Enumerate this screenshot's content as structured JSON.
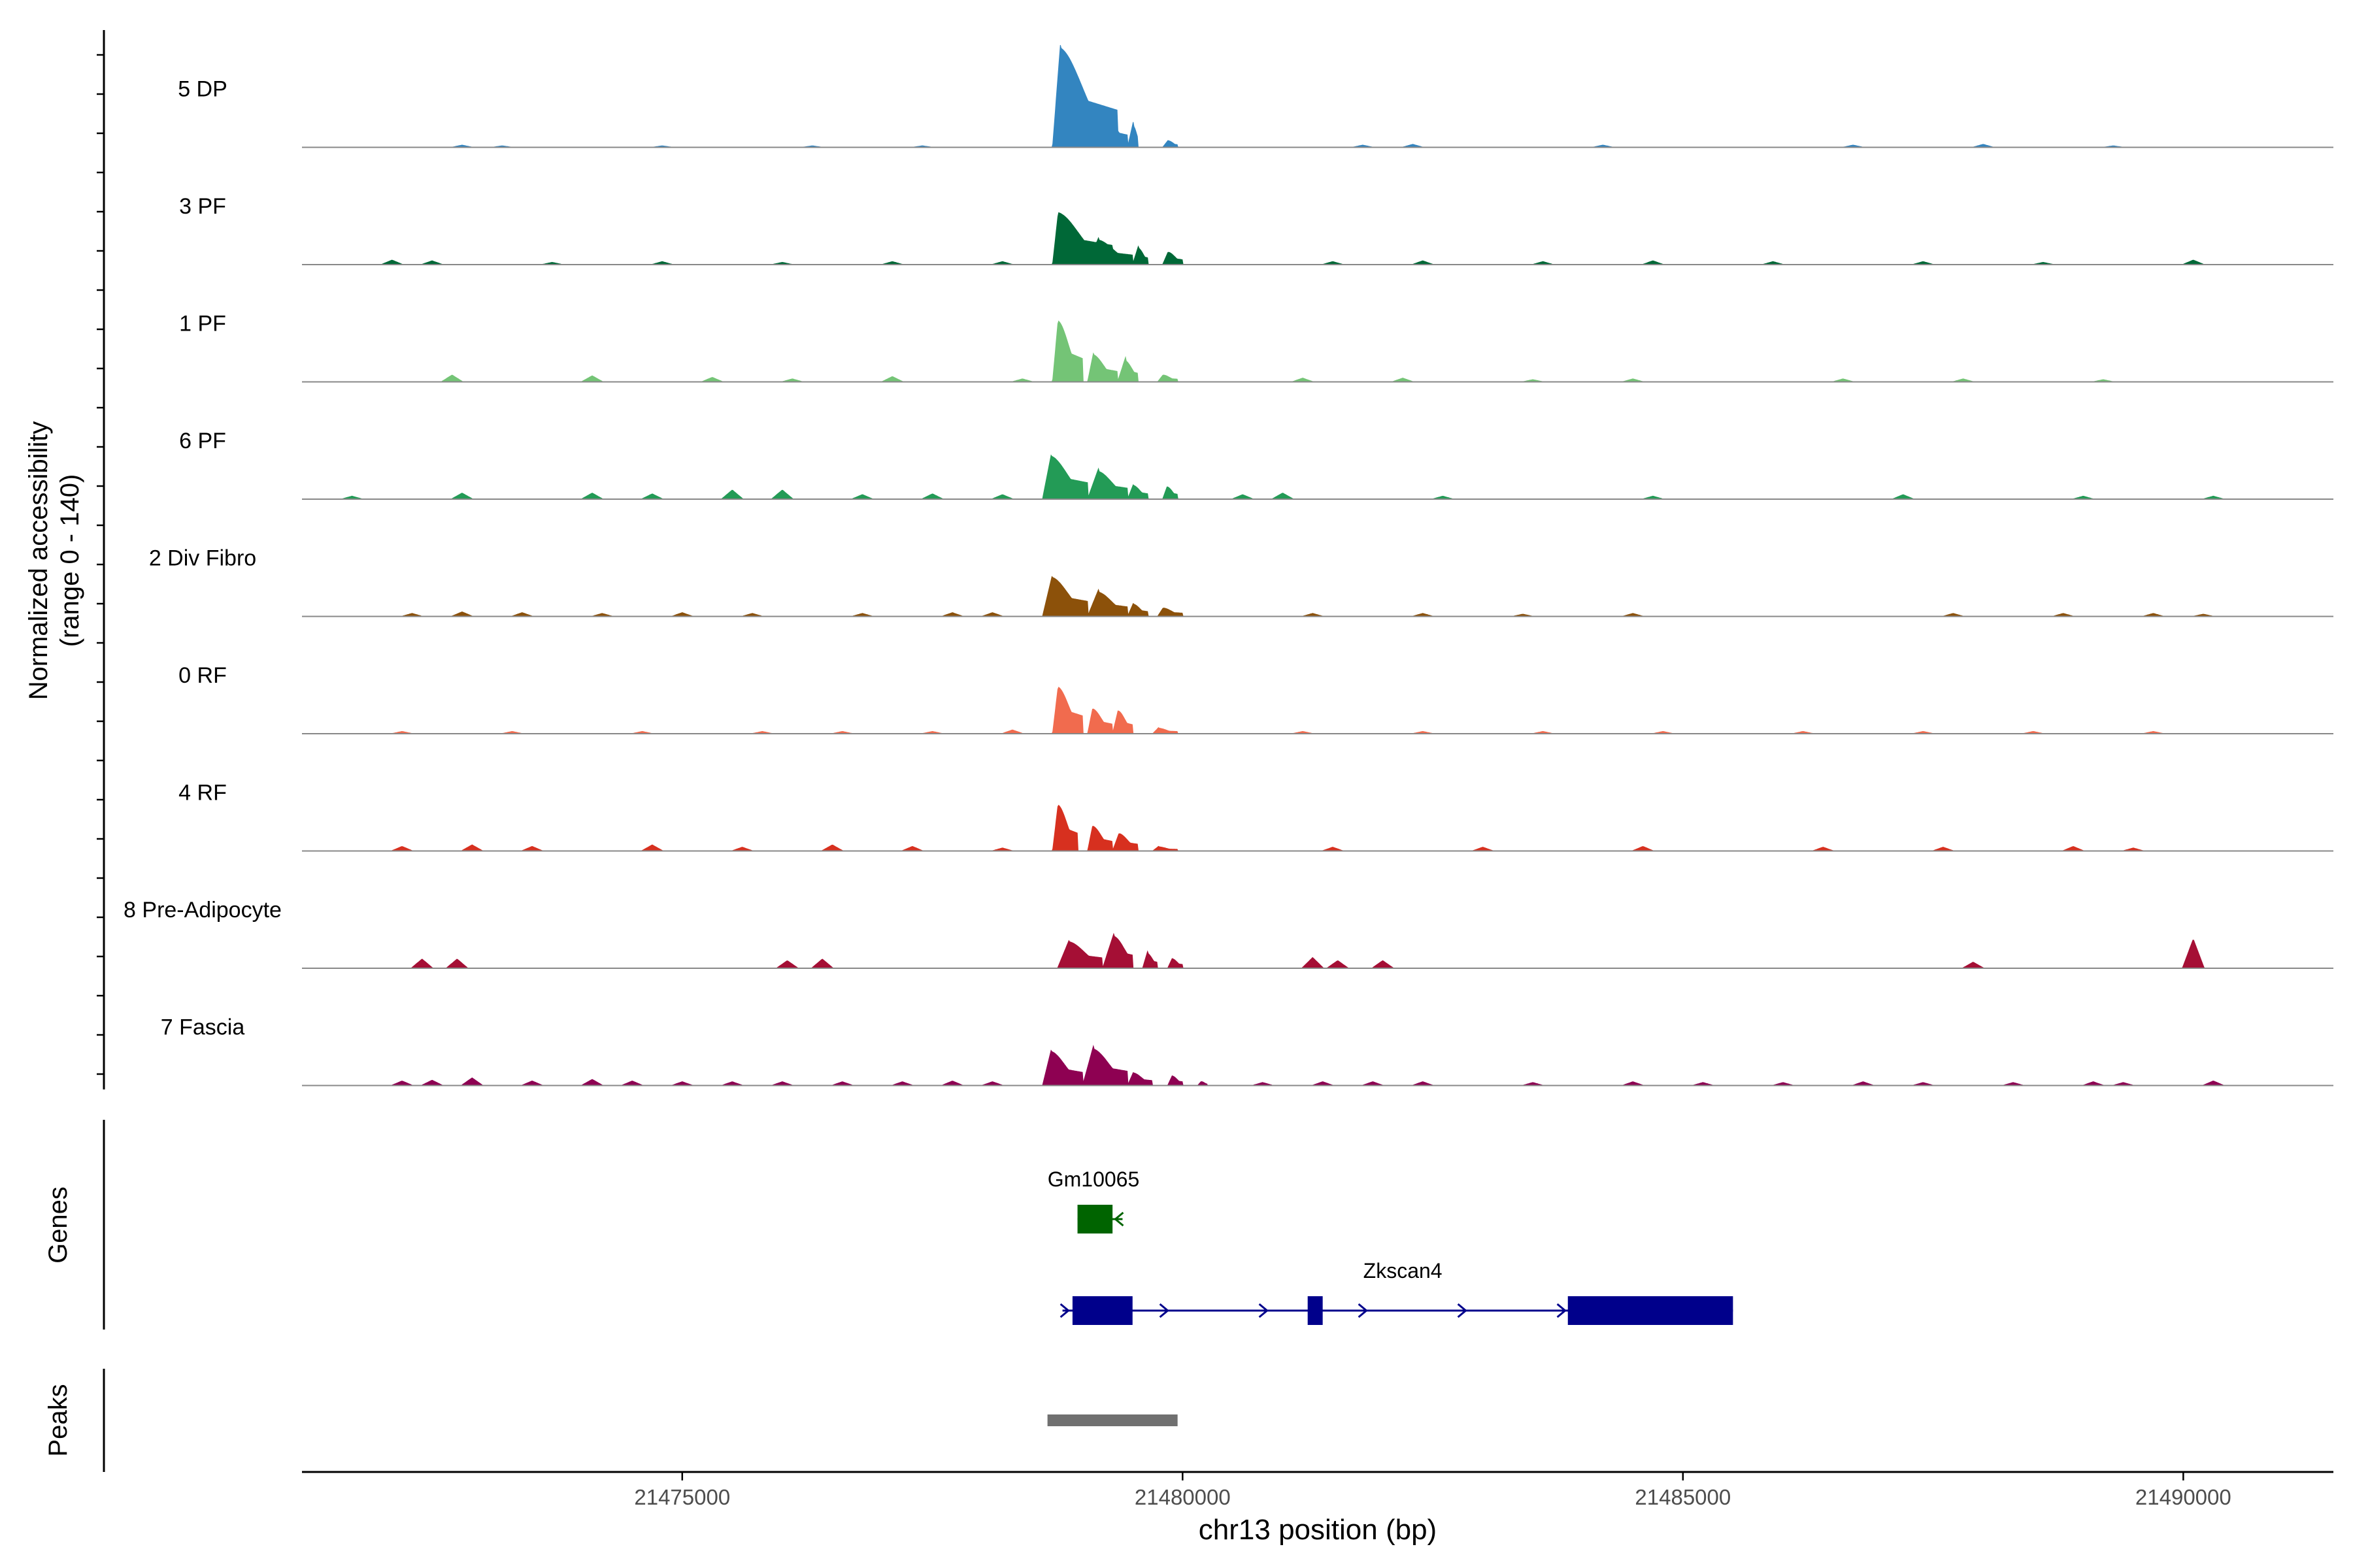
{
  "chart_data": {
    "type": "area",
    "title": "",
    "ylabel_line1": "Normalized accessibility",
    "ylabel_line2": "(range 0 - 140)",
    "xlabel": "chr13 position (bp)",
    "xlim": [
      21471200,
      21491500
    ],
    "ylim": [
      0,
      140
    ],
    "xticks": [
      21475000,
      21480000,
      21485000,
      21490000
    ],
    "xtick_labels": [
      "21475000",
      "21480000",
      "21485000",
      "21490000"
    ],
    "series": [
      {
        "name": "5 DP",
        "color": "#3385C0",
        "peaks": [
          [
            21478700,
            21479350,
            135,
            80
          ],
          [
            21479150,
            21479450,
            45,
            90
          ],
          [
            21479450,
            21479550,
            35,
            60
          ],
          [
            21479800,
            21479950,
            10,
            60
          ]
        ],
        "bumps": [
          [
            21472800,
            3
          ],
          [
            21473200,
            2
          ],
          [
            21474800,
            2
          ],
          [
            21476300,
            2
          ],
          [
            21477400,
            2
          ],
          [
            21481800,
            3
          ],
          [
            21482300,
            4
          ],
          [
            21484200,
            3
          ],
          [
            21486700,
            3
          ],
          [
            21488000,
            4
          ],
          [
            21489300,
            2
          ]
        ]
      },
      {
        "name": "3 PF",
        "color": "#006837",
        "peaks": [
          [
            21478700,
            21479300,
            70,
            60
          ],
          [
            21479050,
            21479500,
            35,
            110
          ],
          [
            21479500,
            21479650,
            25,
            60
          ],
          [
            21479800,
            21480000,
            18,
            60
          ]
        ],
        "bumps": [
          [
            21472100,
            6
          ],
          [
            21472500,
            5
          ],
          [
            21473700,
            3
          ],
          [
            21474800,
            4
          ],
          [
            21476000,
            3
          ],
          [
            21477100,
            4
          ],
          [
            21478200,
            4
          ],
          [
            21481500,
            4
          ],
          [
            21482400,
            5
          ],
          [
            21483600,
            4
          ],
          [
            21484700,
            5
          ],
          [
            21485900,
            4
          ],
          [
            21487400,
            4
          ],
          [
            21488600,
            3
          ],
          [
            21490100,
            6
          ]
        ]
      },
      {
        "name": "1 PF",
        "color": "#74C476",
        "peaks": [
          [
            21478700,
            21479000,
            85,
            60
          ],
          [
            21479050,
            21479350,
            38,
            60
          ],
          [
            21479350,
            21479550,
            32,
            80
          ],
          [
            21479750,
            21479950,
            10,
            60
          ]
        ],
        "bumps": [
          [
            21472700,
            9
          ],
          [
            21474100,
            8
          ],
          [
            21475300,
            6
          ],
          [
            21476100,
            4
          ],
          [
            21477100,
            7
          ],
          [
            21478400,
            4
          ],
          [
            21481200,
            5
          ],
          [
            21482200,
            5
          ],
          [
            21483500,
            3
          ],
          [
            21484500,
            4
          ],
          [
            21486600,
            4
          ],
          [
            21487800,
            4
          ],
          [
            21489200,
            3
          ]
        ]
      },
      {
        "name": "6 PF",
        "color": "#239B56",
        "peaks": [
          [
            21478600,
            21479050,
            60,
            90
          ],
          [
            21479050,
            21479450,
            40,
            110
          ],
          [
            21479450,
            21479650,
            20,
            60
          ],
          [
            21479800,
            21479950,
            18,
            50
          ]
        ],
        "bumps": [
          [
            21471700,
            4
          ],
          [
            21472800,
            8
          ],
          [
            21474100,
            8
          ],
          [
            21474700,
            7
          ],
          [
            21475500,
            12
          ],
          [
            21476000,
            12
          ],
          [
            21476800,
            6
          ],
          [
            21477500,
            7
          ],
          [
            21478200,
            6
          ],
          [
            21480600,
            6
          ],
          [
            21481000,
            8
          ],
          [
            21482600,
            4
          ],
          [
            21484700,
            4
          ],
          [
            21487200,
            6
          ],
          [
            21489000,
            4
          ],
          [
            21490300,
            4
          ]
        ]
      },
      {
        "name": "2 Div Fibro",
        "color": "#8C510A",
        "peaks": [
          [
            21478600,
            21479050,
            55,
            100
          ],
          [
            21479050,
            21479450,
            35,
            110
          ],
          [
            21479450,
            21479650,
            18,
            60
          ],
          [
            21479750,
            21480000,
            12,
            60
          ]
        ],
        "bumps": [
          [
            21472300,
            4
          ],
          [
            21472800,
            6
          ],
          [
            21473400,
            5
          ],
          [
            21474200,
            4
          ],
          [
            21475000,
            5
          ],
          [
            21475700,
            4
          ],
          [
            21476800,
            4
          ],
          [
            21477700,
            5
          ],
          [
            21478100,
            5
          ],
          [
            21481300,
            4
          ],
          [
            21482400,
            4
          ],
          [
            21483400,
            3
          ],
          [
            21484500,
            4
          ],
          [
            21487700,
            4
          ],
          [
            21488800,
            4
          ],
          [
            21489700,
            4
          ],
          [
            21490200,
            3
          ]
        ]
      },
      {
        "name": "0 RF",
        "color": "#F16B4E",
        "peaks": [
          [
            21478700,
            21479000,
            65,
            60
          ],
          [
            21479050,
            21479300,
            35,
            55
          ],
          [
            21479300,
            21479500,
            33,
            60
          ],
          [
            21479700,
            21479950,
            8,
            60
          ]
        ],
        "bumps": [
          [
            21472200,
            3
          ],
          [
            21473300,
            3
          ],
          [
            21474600,
            3
          ],
          [
            21475800,
            3
          ],
          [
            21476600,
            3
          ],
          [
            21477500,
            3
          ],
          [
            21478300,
            5
          ],
          [
            21481200,
            3
          ],
          [
            21482400,
            3
          ],
          [
            21483600,
            3
          ],
          [
            21484800,
            3
          ],
          [
            21486200,
            3
          ],
          [
            21487400,
            3
          ],
          [
            21488500,
            3
          ],
          [
            21489700,
            3
          ]
        ]
      },
      {
        "name": "4 RF",
        "color": "#D7301F",
        "peaks": [
          [
            21478700,
            21478950,
            65,
            60
          ],
          [
            21479050,
            21479300,
            35,
            55
          ],
          [
            21479300,
            21479550,
            25,
            70
          ],
          [
            21479700,
            21479950,
            6,
            60
          ]
        ],
        "bumps": [
          [
            21472200,
            6
          ],
          [
            21472900,
            8
          ],
          [
            21473500,
            6
          ],
          [
            21474700,
            8
          ],
          [
            21475600,
            5
          ],
          [
            21476500,
            8
          ],
          [
            21477300,
            6
          ],
          [
            21478200,
            4
          ],
          [
            21481500,
            5
          ],
          [
            21483000,
            5
          ],
          [
            21484600,
            6
          ],
          [
            21486400,
            5
          ],
          [
            21487600,
            5
          ],
          [
            21488900,
            6
          ],
          [
            21489500,
            4
          ]
        ]
      },
      {
        "name": "8 Pre-Adipocyte",
        "color": "#A50F35",
        "peaks": [
          [
            21478750,
            21479200,
            38,
            120
          ],
          [
            21479200,
            21479500,
            48,
            120
          ],
          [
            21479600,
            21479750,
            22,
            50
          ],
          [
            21479850,
            21480000,
            14,
            50
          ]
        ],
        "bumps": [
          [
            21472400,
            12
          ],
          [
            21472750,
            12
          ],
          [
            21476050,
            10
          ],
          [
            21476400,
            12
          ],
          [
            21481300,
            14
          ],
          [
            21481550,
            10
          ],
          [
            21482000,
            10
          ],
          [
            21487900,
            8
          ],
          [
            21490100,
            38
          ]
        ]
      },
      {
        "name": "7 Fascia",
        "color": "#8E0152",
        "peaks": [
          [
            21478600,
            21479000,
            48,
            90
          ],
          [
            21479000,
            21479450,
            52,
            110
          ],
          [
            21479450,
            21479700,
            18,
            60
          ],
          [
            21479850,
            21480000,
            14,
            50
          ],
          [
            21480150,
            21480250,
            6,
            40
          ]
        ],
        "bumps": [
          [
            21472200,
            6
          ],
          [
            21472500,
            7
          ],
          [
            21472900,
            10
          ],
          [
            21473500,
            6
          ],
          [
            21474100,
            8
          ],
          [
            21474500,
            6
          ],
          [
            21475000,
            5
          ],
          [
            21475500,
            5
          ],
          [
            21476000,
            5
          ],
          [
            21476600,
            5
          ],
          [
            21477200,
            5
          ],
          [
            21477700,
            6
          ],
          [
            21478100,
            5
          ],
          [
            21480800,
            4
          ],
          [
            21481400,
            5
          ],
          [
            21481900,
            5
          ],
          [
            21482400,
            5
          ],
          [
            21483500,
            4
          ],
          [
            21484500,
            5
          ],
          [
            21485200,
            4
          ],
          [
            21486000,
            4
          ],
          [
            21486800,
            5
          ],
          [
            21487400,
            4
          ],
          [
            21488300,
            4
          ],
          [
            21489100,
            5
          ],
          [
            21489400,
            4
          ],
          [
            21490300,
            6
          ]
        ]
      }
    ],
    "genes": [
      {
        "name": "Gm10065",
        "color": "#006400",
        "strand": "-",
        "start": 21478950,
        "end": 21479400,
        "exons": [
          [
            21478950,
            21479300
          ]
        ]
      },
      {
        "name": "Zkscan4",
        "color": "#00008B",
        "strand": "+",
        "start": 21478800,
        "end": 21485500,
        "exons": [
          [
            21478900,
            21479500
          ],
          [
            21481250,
            21481400
          ],
          [
            21483850,
            21485500
          ]
        ]
      }
    ],
    "genes_label": "Genes",
    "peaks_track": {
      "label": "Peaks",
      "color": "#707070",
      "regions": [
        [
          21478650,
          21479950
        ]
      ]
    }
  }
}
